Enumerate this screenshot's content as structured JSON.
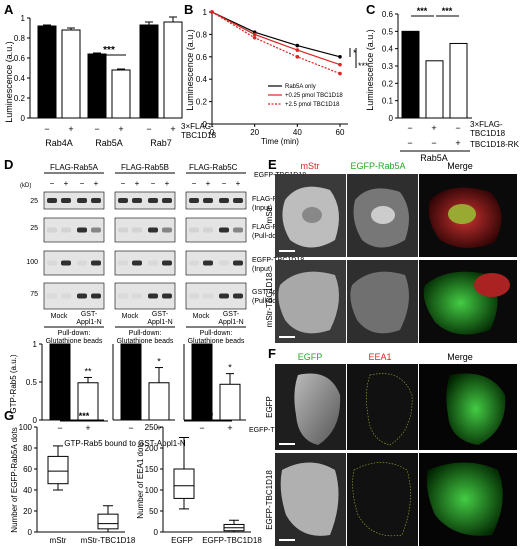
{
  "panels": {
    "A": "A",
    "B": "B",
    "C": "C",
    "D": "D",
    "E": "E",
    "F": "F",
    "G": "G"
  },
  "signs": {
    "minus": "−",
    "plus": "+"
  },
  "stars": {
    "s1": "*",
    "s2": "**",
    "s3": "***"
  },
  "panelA": {
    "ylabel": "Luminescence (a.u.)",
    "yticks": [
      "0",
      "0.2",
      "0.4",
      "0.6",
      "0.8",
      "1"
    ],
    "groups": [
      "Rab4A",
      "Rab5A",
      "Rab7"
    ],
    "rowlabel_1": "3×FLAG-",
    "rowlabel_2": "TBC1D18",
    "sig": "***"
  },
  "panelB": {
    "ylabel": "Luminescence (a.u.)",
    "xlabel": "Time (min)",
    "yticks": [
      "0",
      "0.2",
      "0.4",
      "0.6",
      "0.8",
      "1"
    ],
    "xticks": [
      "0",
      "20",
      "40",
      "60"
    ],
    "legend": [
      "Rab5A only",
      "+0.25 pmol TBC1D18",
      "+2.5 pmol TBC1D18"
    ],
    "sig1": "*",
    "sig2": "***"
  },
  "panelC": {
    "ylabel": "Luminescence (a.u.)",
    "yticks": [
      "0",
      "0.1",
      "0.2",
      "0.3",
      "0.4",
      "0.5",
      "0.6"
    ],
    "row1_label_1": "3×FLAG-",
    "row1_label_2": "TBC1D18",
    "row2_label": "TBC1D18-RK",
    "group": "Rab5A",
    "sig": "***"
  },
  "panelD": {
    "heads": [
      "FLAG-Rab5A",
      "FLAG-Rab5B",
      "FLAG-Rab5C"
    ],
    "egfp_label": "EGFP-TBC1D18",
    "kd": "(kD)",
    "mw": {
      "r1": "25",
      "r2": "25",
      "r3": "100",
      "r4": "75"
    },
    "row_labels": [
      {
        "a": "FLAG-Rab5",
        "b": "(Input)"
      },
      {
        "a": "FLAG-Rab5",
        "b": "(Pull-down)"
      },
      {
        "a": "EGFP-TBC1D18",
        "b": "(Input)"
      },
      {
        "a": "GST-Appl1-N",
        "b": "(Pull-down)"
      }
    ],
    "mock": "Mock",
    "gst_1": "GST-",
    "gst_2": "Appl1-N",
    "pull_1": "Pull-down:",
    "pull_2": "Glutathione beads",
    "bar_ylabel": "GTP-Rab5 (a.u.)",
    "yticks": [
      "0",
      "0.5",
      "1"
    ],
    "sigs": [
      "**",
      "*",
      "*"
    ],
    "bar_xlabel": "GTP-Rab5 bound to GST-Appl1-N",
    "bar_egfp": "EGFP-TBC1D18"
  },
  "panelE": {
    "cols": [
      "mStr",
      "EGFP-Rab5A",
      "Merge"
    ],
    "rows": [
      "mStr",
      "mStr-TBC1D18"
    ]
  },
  "panelF": {
    "cols": [
      "EGFP",
      "EEA1",
      "Merge"
    ],
    "rows": [
      "EGFP",
      "EGFP-TBC1D18"
    ]
  },
  "panelG": {
    "left_ylabel_1": "Number of EGFP-Rab5A dots",
    "left_yticks": [
      "0",
      "20",
      "40",
      "60",
      "80",
      "100"
    ],
    "left_x": [
      "mStr",
      "mStr-TBC1D18"
    ],
    "right_ylabel": "Number of EEA1 dots",
    "right_yticks": [
      "0",
      "50",
      "100",
      "150",
      "200",
      "250"
    ],
    "right_x": [
      "EGFP",
      "EGFP-TBC1D18"
    ],
    "sig": "***"
  },
  "chart_data": [
    {
      "type": "bar",
      "id": "A",
      "categories": [
        "Rab4A −",
        "Rab4A +",
        "Rab5A −",
        "Rab5A +",
        "Rab7 −",
        "Rab7 +"
      ],
      "values": [
        0.92,
        0.88,
        0.64,
        0.48,
        0.93,
        0.96
      ],
      "errors": [
        0.01,
        0.02,
        0.01,
        0.01,
        0.03,
        0.05
      ],
      "ylabel": "Luminescence (a.u.)",
      "ylim": [
        0,
        1
      ]
    },
    {
      "type": "line",
      "id": "B",
      "x": [
        0,
        20,
        40,
        60
      ],
      "series": [
        {
          "name": "Rab5A only",
          "values": [
            1.0,
            0.82,
            0.7,
            0.6
          ]
        },
        {
          "name": "+0.25 pmol TBC1D18",
          "values": [
            1.0,
            0.8,
            0.66,
            0.53
          ]
        },
        {
          "name": "+2.5 pmol TBC1D18",
          "values": [
            1.0,
            0.77,
            0.6,
            0.45
          ]
        }
      ],
      "xlabel": "Time (min)",
      "ylabel": "Luminescence (a.u.)",
      "ylim": [
        0,
        1
      ]
    },
    {
      "type": "bar",
      "id": "C",
      "categories": [
        "− −",
        "+ −",
        "− +"
      ],
      "values": [
        0.5,
        0.33,
        0.43
      ],
      "errors": [
        0.005,
        0.003,
        0.006
      ],
      "ylabel": "Luminescence (a.u.)",
      "ylim": [
        0,
        0.6
      ]
    },
    {
      "type": "bar",
      "id": "D-Rab5A",
      "categories": [
        "−",
        "+"
      ],
      "values": [
        1.0,
        0.49
      ],
      "errors": [
        0,
        0.07
      ],
      "ylabel": "GTP-Rab5 (a.u.)",
      "ylim": [
        0,
        1
      ]
    },
    {
      "type": "bar",
      "id": "D-Rab5B",
      "categories": [
        "−",
        "+"
      ],
      "values": [
        1.0,
        0.49
      ],
      "errors": [
        0,
        0.2
      ],
      "ylim": [
        0,
        1
      ]
    },
    {
      "type": "bar",
      "id": "D-Rab5C",
      "categories": [
        "−",
        "+"
      ],
      "values": [
        1.0,
        0.47
      ],
      "errors": [
        0,
        0.14
      ],
      "ylim": [
        0,
        1
      ]
    },
    {
      "type": "box",
      "id": "G-left",
      "categories": [
        "mStr",
        "mStr-TBC1D18"
      ],
      "boxes": [
        {
          "min": 40,
          "q1": 46,
          "median": 58,
          "q3": 72,
          "max": 82
        },
        {
          "min": 0,
          "q1": 3,
          "median": 8,
          "q3": 17,
          "max": 25
        }
      ],
      "ylabel": "Number of EGFP-Rab5A dots",
      "ylim": [
        0,
        100
      ]
    },
    {
      "type": "box",
      "id": "G-right",
      "categories": [
        "EGFP",
        "EGFP-TBC1D18"
      ],
      "boxes": [
        {
          "min": 55,
          "q1": 80,
          "median": 110,
          "q3": 150,
          "max": 225
        },
        {
          "min": 0,
          "q1": 3,
          "median": 10,
          "q3": 18,
          "max": 28
        }
      ],
      "ylabel": "Number of EEA1 dots",
      "ylim": [
        0,
        250
      ]
    }
  ]
}
